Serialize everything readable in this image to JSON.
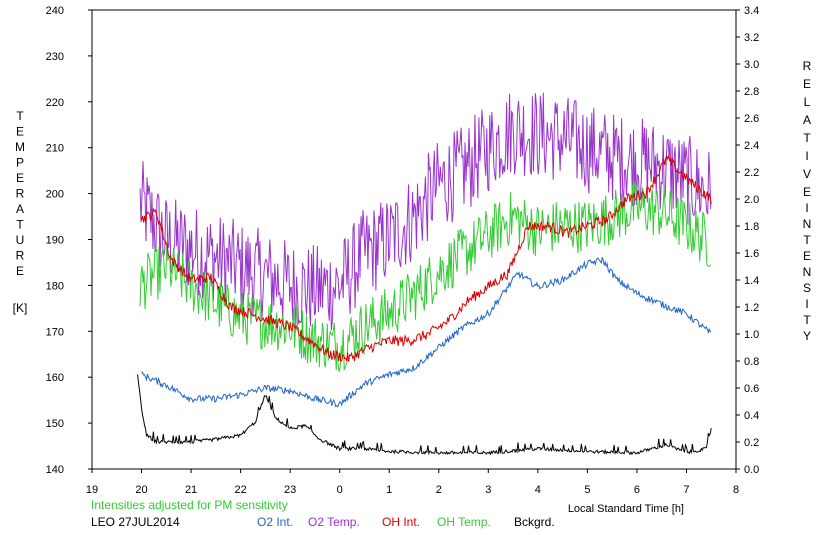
{
  "chart_data": {
    "type": "line",
    "title": "",
    "xlabel": "Local Standard Time [h]",
    "left_axis": {
      "label_letters": [
        "T",
        "E",
        "M",
        "P",
        "E",
        "R",
        "A",
        "T",
        "U",
        "R",
        "E"
      ],
      "unit": "[K]",
      "range": [
        140,
        240
      ],
      "ticks": [
        "140",
        "150",
        "160",
        "170",
        "180",
        "190",
        "200",
        "210",
        "220",
        "230",
        "240"
      ]
    },
    "right_axis": {
      "label_words": [
        [
          "R",
          "E",
          "L",
          "A",
          "T",
          "I",
          "V",
          "E"
        ],
        [
          "I",
          "N",
          "T",
          "E",
          "N",
          "S",
          "I",
          "T",
          "Y"
        ]
      ],
      "range": [
        0.0,
        3.4
      ],
      "ticks": [
        "0.0",
        "0.2",
        "0.4",
        "0.6",
        "0.8",
        "1.0",
        "1.2",
        "1.4",
        "1.6",
        "1.8",
        "2.0",
        "2.2",
        "2.4",
        "2.6",
        "2.8",
        "3.0",
        "3.2",
        "3.4"
      ]
    },
    "x_axis": {
      "range": [
        19,
        32
      ],
      "ticks": [
        "19",
        "20",
        "21",
        "22",
        "23",
        "0",
        "1",
        "2",
        "3",
        "4",
        "5",
        "6",
        "7",
        "8"
      ]
    },
    "grid": false,
    "series": [
      {
        "name": "O2 Temp.",
        "axis": "left",
        "color": "#9933CC",
        "noise": 10,
        "x": [
          19.97,
          20.5,
          21.0,
          21.5,
          22.0,
          22.5,
          23.0,
          23.5,
          24.0,
          24.5,
          25.0,
          25.5,
          26.0,
          26.5,
          27.0,
          27.5,
          28.0,
          28.5,
          29.0,
          29.5,
          30.0,
          30.5,
          31.0,
          31.5
        ],
        "y": [
          198,
          190,
          188,
          186,
          184,
          182,
          180,
          179,
          180,
          187,
          190,
          195,
          202,
          205,
          210,
          214,
          213,
          212,
          210,
          208,
          207,
          206,
          203,
          200
        ]
      },
      {
        "name": "OH Temp.",
        "axis": "left",
        "color": "#33CC33",
        "noise": 6,
        "x": [
          19.97,
          20.5,
          21.0,
          21.5,
          22.0,
          22.5,
          23.0,
          23.5,
          24.0,
          24.5,
          25.0,
          25.5,
          26.0,
          26.5,
          27.0,
          27.5,
          28.0,
          28.5,
          29.0,
          29.5,
          30.0,
          30.5,
          31.0,
          31.5
        ],
        "y": [
          180,
          184,
          180,
          176,
          173,
          172,
          171,
          168,
          167,
          171,
          174,
          178,
          183,
          187,
          191,
          195,
          192,
          193,
          193,
          195,
          197,
          196,
          193,
          189
        ]
      },
      {
        "name": "OH Int.",
        "axis": "right",
        "color": "#DD0000",
        "noise": 0.04,
        "x": [
          20.0,
          20.3,
          20.6,
          21.0,
          21.4,
          21.8,
          22.2,
          22.6,
          23.0,
          23.4,
          23.8,
          24.2,
          24.6,
          25.0,
          25.4,
          25.8,
          26.2,
          26.6,
          27.0,
          27.4,
          27.8,
          28.2,
          28.6,
          29.0,
          29.4,
          29.8,
          30.2,
          30.6,
          31.0,
          31.5
        ],
        "y": [
          1.85,
          1.9,
          1.55,
          1.4,
          1.42,
          1.2,
          1.15,
          1.1,
          1.05,
          0.95,
          0.85,
          0.82,
          0.9,
          0.95,
          0.95,
          1.0,
          1.1,
          1.25,
          1.35,
          1.45,
          1.8,
          1.8,
          1.75,
          1.8,
          1.85,
          2.0,
          2.05,
          2.3,
          2.15,
          2.0
        ]
      },
      {
        "name": "O2 Int.",
        "axis": "right",
        "color": "#2266CC",
        "noise": 0.025,
        "x": [
          20.0,
          20.5,
          21.0,
          21.5,
          22.0,
          22.5,
          23.0,
          23.5,
          24.0,
          24.5,
          25.0,
          25.5,
          26.0,
          26.5,
          27.0,
          27.3,
          27.6,
          28.0,
          28.5,
          29.0,
          29.3,
          29.6,
          30.0,
          30.5,
          31.0,
          31.5
        ],
        "y": [
          0.7,
          0.62,
          0.52,
          0.52,
          0.55,
          0.6,
          0.58,
          0.52,
          0.48,
          0.63,
          0.7,
          0.75,
          0.9,
          1.05,
          1.15,
          1.3,
          1.45,
          1.35,
          1.4,
          1.52,
          1.55,
          1.4,
          1.3,
          1.22,
          1.15,
          1.0
        ]
      },
      {
        "name": "Bckgrd.",
        "axis": "right",
        "color": "#000000",
        "noise": 0.012,
        "x": [
          19.92,
          20.0,
          20.1,
          20.3,
          20.6,
          21.0,
          21.5,
          22.0,
          22.3,
          22.5,
          22.7,
          23.0,
          23.3,
          23.6,
          24.0,
          24.5,
          25.0,
          26.0,
          27.0,
          28.0,
          29.0,
          30.0,
          30.6,
          31.0,
          31.4,
          31.5
        ],
        "y": [
          0.7,
          0.45,
          0.25,
          0.2,
          0.2,
          0.2,
          0.22,
          0.25,
          0.35,
          0.55,
          0.38,
          0.3,
          0.32,
          0.22,
          0.15,
          0.15,
          0.13,
          0.12,
          0.12,
          0.15,
          0.13,
          0.12,
          0.18,
          0.12,
          0.15,
          0.3
        ]
      }
    ]
  },
  "footer": {
    "note": "Intensities adjusted for PM sensitivity",
    "site_date": "LEO 27JUL2014",
    "legend": [
      "O2 Int.",
      "O2 Temp.",
      "OH Int.",
      "OH Temp.",
      "Bckgrd."
    ],
    "colors": {
      "note": "#33CC33"
    }
  }
}
